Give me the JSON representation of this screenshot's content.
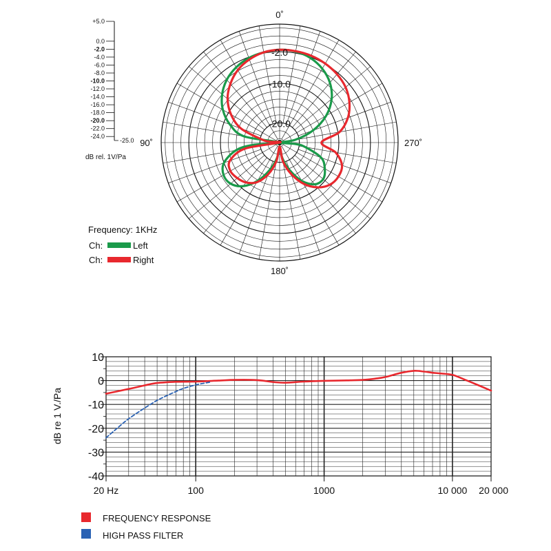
{
  "chart_data": [
    {
      "type": "polar",
      "angle_labels": [
        "0˚",
        "90˚",
        "180˚",
        "270˚"
      ],
      "ring_labels": [
        "-2.0",
        "-10.0",
        "-20.0"
      ],
      "scale_labels": [
        "+5.0",
        "0.0",
        "-2.0",
        "-4.0",
        "-6.0",
        "-8.0",
        "-10.0",
        "-12.0",
        "-14.0",
        "-16.0",
        "-18.0",
        "-20.0",
        "-22.0",
        "-24.0",
        "-25.0"
      ],
      "scale_values": [
        5,
        0,
        -2,
        -4,
        -6,
        -8,
        -10,
        -12,
        -14,
        -16,
        -18,
        -20,
        -22,
        -24,
        -25
      ],
      "scale_bold": [
        "-2.0",
        "-10.0",
        "-20.0"
      ],
      "unit_label": "dB rel. 1V/Pa",
      "rlim": [
        -25,
        5
      ],
      "frequency_label": "Frequency: 1KHz",
      "legend": [
        {
          "prefix": "Ch:",
          "name": "Left",
          "color": "#1a9a4a"
        },
        {
          "prefix": "Ch:",
          "name": "Right",
          "color": "#e8282e"
        }
      ],
      "series": [
        {
          "name": "Left",
          "color": "#1a9a4a",
          "angles": [
            0,
            10,
            20,
            30,
            40,
            50,
            60,
            70,
            80,
            90,
            95,
            100,
            110,
            120,
            130,
            140,
            150,
            160,
            170,
            180,
            190,
            200,
            210,
            220,
            230,
            240,
            250,
            260,
            265,
            270,
            280,
            290,
            300,
            310,
            320,
            330,
            340,
            350
          ],
          "db": [
            -1.5,
            -1.8,
            -2.2,
            -3.0,
            -4.2,
            -6.0,
            -8.4,
            -11.6,
            -15.8,
            -25,
            -18.2,
            -13.8,
            -10.0,
            -8.6,
            -8.8,
            -10.6,
            -13.8,
            -17.6,
            -21.0,
            -24.0,
            -21.0,
            -17.6,
            -13.8,
            -11.2,
            -10.6,
            -11.8,
            -13.8,
            -18.4,
            -21.0,
            -25,
            -21.0,
            -16.0,
            -11.4,
            -7.8,
            -5.2,
            -3.4,
            -2.2,
            -1.6
          ]
        },
        {
          "name": "Right",
          "color": "#e8282e",
          "angles": [
            0,
            10,
            20,
            30,
            40,
            50,
            60,
            70,
            80,
            85,
            90,
            100,
            110,
            120,
            130,
            140,
            150,
            160,
            170,
            180,
            190,
            200,
            210,
            220,
            230,
            240,
            250,
            260,
            270,
            280,
            290,
            300,
            310,
            320,
            330,
            340,
            350
          ],
          "db": [
            -1.5,
            -1.8,
            -2.6,
            -3.8,
            -5.6,
            -7.8,
            -10.8,
            -14.6,
            -20.4,
            -22.5,
            -25,
            -16.0,
            -11.6,
            -10.6,
            -11.0,
            -11.8,
            -13.4,
            -16.4,
            -20.2,
            -24.0,
            -20.2,
            -16.6,
            -13.0,
            -10.2,
            -8.4,
            -7.8,
            -8.2,
            -10.6,
            -14.4,
            -9.6,
            -6.6,
            -4.6,
            -3.2,
            -2.4,
            -1.9,
            -1.6,
            -1.5
          ]
        }
      ]
    },
    {
      "type": "line",
      "x_scale": "log",
      "xlim": [
        20,
        20000
      ],
      "ylim": [
        -40,
        10
      ],
      "ylabel": "dB re 1 V./Pa",
      "x_tick_labels": [
        "20 Hz",
        "100",
        "1000",
        "10 000",
        "20 000"
      ],
      "x_tick_values": [
        20,
        100,
        1000,
        10000,
        20000
      ],
      "y_tick_labels": [
        "10",
        "0",
        "-10",
        "-20",
        "-30",
        "-40"
      ],
      "y_tick_values": [
        10,
        0,
        -10,
        -20,
        -30,
        -40
      ],
      "series": [
        {
          "name": "FREQUENCY RESPONSE",
          "color": "#e8282e",
          "style": "solid",
          "x": [
            20,
            30,
            40,
            50,
            70,
            100,
            150,
            200,
            300,
            400,
            500,
            700,
            1000,
            1500,
            2000,
            2500,
            3000,
            4000,
            5000,
            6000,
            7000,
            8000,
            10000,
            13000,
            16000,
            20000
          ],
          "y": [
            -5.5,
            -3.5,
            -2.0,
            -1.0,
            -0.5,
            -0.4,
            0.0,
            0.3,
            0.2,
            -0.6,
            -0.9,
            -0.4,
            -0.1,
            0.1,
            0.3,
            0.8,
            1.5,
            3.3,
            4.1,
            3.8,
            3.3,
            3.0,
            2.4,
            0.0,
            -2.0,
            -4.2
          ]
        },
        {
          "name": "HIGH PASS FILTER",
          "color": "#2a62b4",
          "style": "dashed",
          "x": [
            20,
            25,
            30,
            40,
            50,
            60,
            70,
            80,
            100,
            130
          ],
          "y": [
            -24.0,
            -19.5,
            -16.0,
            -11.5,
            -8.3,
            -6.2,
            -4.6,
            -3.3,
            -1.8,
            -0.6
          ]
        }
      ],
      "legend": [
        {
          "name": "FREQUENCY RESPONSE",
          "color": "#e8282e"
        },
        {
          "name": "HIGH PASS FILTER",
          "color": "#2a62b4"
        }
      ]
    }
  ]
}
